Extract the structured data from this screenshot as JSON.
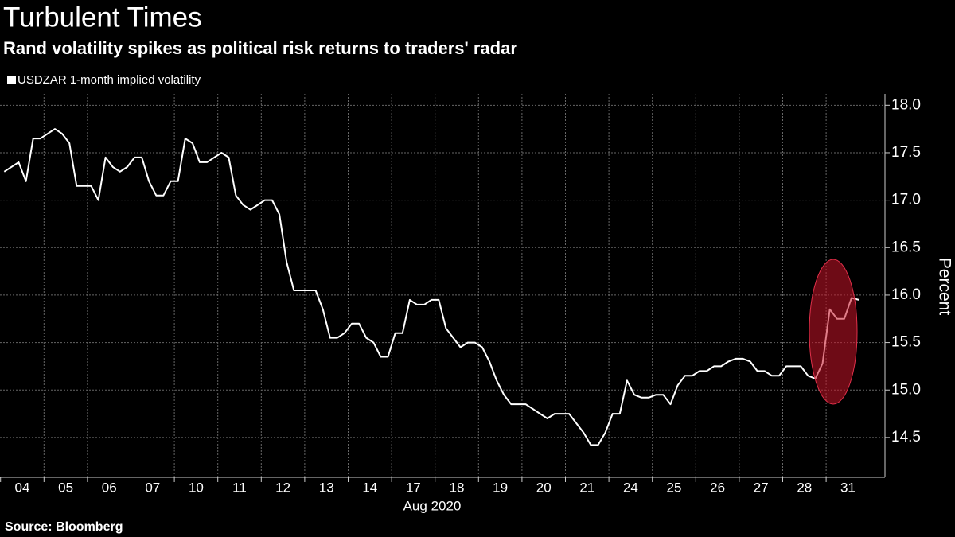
{
  "chart_data": {
    "type": "line",
    "title": "Turbulent Times",
    "subtitle": "Rand volatility spikes as political risk returns to traders' radar",
    "x_label": "Aug 2020",
    "y_label": "Percent",
    "source": "Source: Bloomberg",
    "categories": [
      "04",
      "05",
      "06",
      "07",
      "10",
      "11",
      "12",
      "13",
      "14",
      "17",
      "18",
      "19",
      "20",
      "21",
      "24",
      "25",
      "26",
      "27",
      "28",
      "31"
    ],
    "series": [
      {
        "name": "USDZAR 1-month implied volatility",
        "color": "#ffffff",
        "values": [
          [
            17.3,
            17.35,
            17.4,
            17.2,
            17.65,
            17.65
          ],
          [
            17.7,
            17.75,
            17.7,
            17.6,
            17.15,
            17.15
          ],
          [
            17.15,
            17.0,
            17.45,
            17.35,
            17.3,
            17.35
          ],
          [
            17.45,
            17.45,
            17.2,
            17.05,
            17.05,
            17.2
          ],
          [
            17.2,
            17.65,
            17.6,
            17.4,
            17.4,
            17.45
          ],
          [
            17.5,
            17.45,
            17.05,
            16.95,
            16.9,
            16.95
          ],
          [
            17.0,
            17.0,
            16.85,
            16.35,
            16.05,
            16.05
          ],
          [
            16.05,
            16.05,
            15.85,
            15.55,
            15.55,
            15.6
          ],
          [
            15.7,
            15.7,
            15.55,
            15.5,
            15.35,
            15.35
          ],
          [
            15.6,
            15.6,
            15.95,
            15.9,
            15.9,
            15.95
          ],
          [
            15.95,
            15.65,
            15.55,
            15.45,
            15.5,
            15.5
          ],
          [
            15.45,
            15.3,
            15.1,
            14.95,
            14.85,
            14.85
          ],
          [
            14.85,
            14.8,
            14.75,
            14.7,
            14.75,
            14.75
          ],
          [
            14.75,
            14.65,
            14.55,
            14.42,
            14.42,
            14.55
          ],
          [
            14.75,
            14.75,
            15.1,
            14.95,
            14.92,
            14.92
          ],
          [
            14.95,
            14.95,
            14.85,
            15.05,
            15.15,
            15.15
          ],
          [
            15.2,
            15.2,
            15.25,
            15.25,
            15.3,
            15.33
          ],
          [
            15.33,
            15.3,
            15.2,
            15.2,
            15.15,
            15.15
          ],
          [
            15.25,
            15.25,
            15.25,
            15.15,
            15.12,
            15.28
          ],
          [
            15.85,
            15.75,
            15.75,
            15.97,
            15.95
          ]
        ]
      }
    ],
    "ylim": [
      14.08,
      18.12
    ],
    "yticks": [
      {
        "value": 14.5,
        "label": "14.5"
      },
      {
        "value": 15,
        "label": "15.0"
      },
      15.5,
      {
        "value": 16,
        "label": "16.0"
      },
      16.5,
      {
        "value": 17,
        "label": "17.0"
      },
      17.5,
      {
        "value": 18,
        "label": "18.0"
      }
    ],
    "grid": true
  }
}
